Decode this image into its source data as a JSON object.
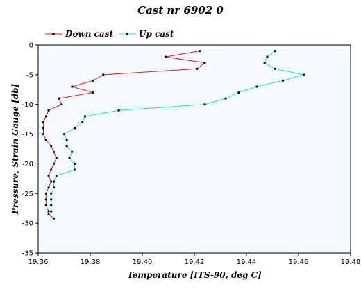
{
  "chart_data": {
    "type": "line",
    "title": "Cast nr 6902 0",
    "xlabel": "Temperature [ITS-90, deg C]",
    "ylabel": "Pressure, Strain Gauge [db]",
    "xlim": [
      19.36,
      19.48
    ],
    "ylim": [
      -35,
      0
    ],
    "x_ticks": [
      "19.36",
      "19.38",
      "19.40",
      "19.42",
      "19.44",
      "19.46",
      "19.48"
    ],
    "y_ticks": [
      "0",
      "-5",
      "-10",
      "-15",
      "-20",
      "-25",
      "-30",
      "-35"
    ],
    "legend_position": "top-left",
    "grid": false,
    "series": [
      {
        "name": "Down cast",
        "color": "#dd2222",
        "points": [
          [
            19.422,
            -1.0
          ],
          [
            19.409,
            -2.0
          ],
          [
            19.424,
            -3.0
          ],
          [
            19.421,
            -4.0
          ],
          [
            19.385,
            -5.0
          ],
          [
            19.381,
            -6.0
          ],
          [
            19.373,
            -7.0
          ],
          [
            19.381,
            -8.0
          ],
          [
            19.368,
            -9.0
          ],
          [
            19.369,
            -10.0
          ],
          [
            19.364,
            -11.0
          ],
          [
            19.363,
            -12.0
          ],
          [
            19.362,
            -13.0
          ],
          [
            19.362,
            -14.0
          ],
          [
            19.362,
            -15.0
          ],
          [
            19.363,
            -16.0
          ],
          [
            19.365,
            -17.0
          ],
          [
            19.366,
            -18.0
          ],
          [
            19.367,
            -19.0
          ],
          [
            19.366,
            -20.0
          ],
          [
            19.365,
            -21.0
          ],
          [
            19.364,
            -22.0
          ],
          [
            19.365,
            -23.0
          ],
          [
            19.364,
            -24.0
          ],
          [
            19.363,
            -25.0
          ],
          [
            19.363,
            -26.0
          ],
          [
            19.363,
            -27.0
          ],
          [
            19.364,
            -28.0
          ],
          [
            19.364,
            -28.5
          ],
          [
            19.366,
            -29.2
          ]
        ]
      },
      {
        "name": "Up cast",
        "color": "#22dddd",
        "points": [
          [
            19.451,
            -1.0
          ],
          [
            19.448,
            -2.0
          ],
          [
            19.447,
            -3.0
          ],
          [
            19.451,
            -4.0
          ],
          [
            19.462,
            -5.0
          ],
          [
            19.454,
            -6.0
          ],
          [
            19.444,
            -7.0
          ],
          [
            19.437,
            -8.0
          ],
          [
            19.432,
            -9.0
          ],
          [
            19.424,
            -10.0
          ],
          [
            19.391,
            -11.0
          ],
          [
            19.378,
            -12.0
          ],
          [
            19.377,
            -13.0
          ],
          [
            19.374,
            -14.0
          ],
          [
            19.37,
            -15.0
          ],
          [
            19.371,
            -16.0
          ],
          [
            19.371,
            -17.0
          ],
          [
            19.373,
            -18.0
          ],
          [
            19.372,
            -19.0
          ],
          [
            19.374,
            -20.0
          ],
          [
            19.374,
            -21.0
          ],
          [
            19.367,
            -22.0
          ],
          [
            19.366,
            -23.0
          ],
          [
            19.366,
            -24.0
          ],
          [
            19.365,
            -25.0
          ],
          [
            19.365,
            -26.0
          ],
          [
            19.365,
            -27.0
          ],
          [
            19.365,
            -28.0
          ]
        ]
      }
    ]
  }
}
